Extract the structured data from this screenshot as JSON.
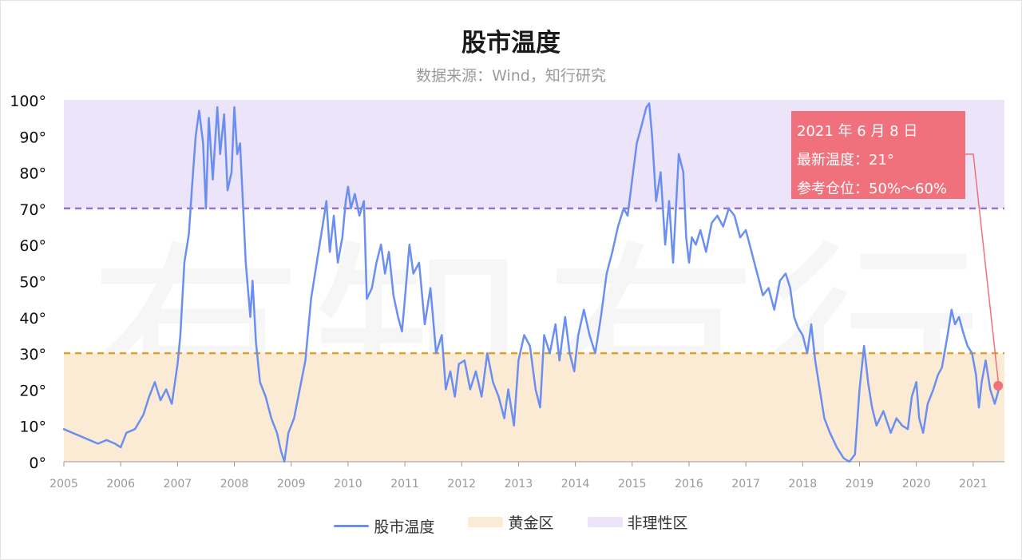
{
  "chart_data": {
    "type": "line",
    "title": "股市温度",
    "subtitle": "数据来源：Wind，知行研究",
    "x_ticks": [
      "2005",
      "2006",
      "2007",
      "2008",
      "2009",
      "2010",
      "2011",
      "2012",
      "2013",
      "2014",
      "2015",
      "2016",
      "2017",
      "2018",
      "2019",
      "2020",
      "2021"
    ],
    "y_ticks": [
      "0°",
      "10°",
      "20°",
      "30°",
      "40°",
      "50°",
      "60°",
      "70°",
      "80°",
      "90°",
      "100°"
    ],
    "ylim": [
      0,
      100
    ],
    "xlim": [
      2005.0,
      2021.55
    ],
    "bands": [
      {
        "name": "黄金区",
        "from": 0,
        "to": 30,
        "color": "#fbebd4"
      },
      {
        "name": "非理性区",
        "from": 70,
        "to": 100,
        "color": "#ece4f8"
      }
    ],
    "thresholds": [
      {
        "value": 30,
        "color": "#e0a030"
      },
      {
        "value": 70,
        "color": "#9a6fd6"
      }
    ],
    "series": [
      {
        "name": "股市温度",
        "color": "#6b8ff0",
        "points": [
          [
            2005.0,
            9
          ],
          [
            2005.15,
            8
          ],
          [
            2005.3,
            7
          ],
          [
            2005.45,
            6
          ],
          [
            2005.6,
            5
          ],
          [
            2005.75,
            6
          ],
          [
            2005.9,
            5
          ],
          [
            2006.0,
            4
          ],
          [
            2006.1,
            8
          ],
          [
            2006.25,
            9
          ],
          [
            2006.4,
            13
          ],
          [
            2006.5,
            18
          ],
          [
            2006.6,
            22
          ],
          [
            2006.7,
            17
          ],
          [
            2006.8,
            20
          ],
          [
            2006.9,
            16
          ],
          [
            2007.0,
            27
          ],
          [
            2007.05,
            35
          ],
          [
            2007.12,
            55
          ],
          [
            2007.2,
            63
          ],
          [
            2007.25,
            75
          ],
          [
            2007.32,
            90
          ],
          [
            2007.38,
            97
          ],
          [
            2007.45,
            88
          ],
          [
            2007.5,
            70
          ],
          [
            2007.55,
            95
          ],
          [
            2007.62,
            78
          ],
          [
            2007.7,
            98
          ],
          [
            2007.75,
            85
          ],
          [
            2007.82,
            96
          ],
          [
            2007.88,
            75
          ],
          [
            2007.95,
            80
          ],
          [
            2008.0,
            98
          ],
          [
            2008.05,
            85
          ],
          [
            2008.1,
            88
          ],
          [
            2008.2,
            55
          ],
          [
            2008.28,
            40
          ],
          [
            2008.32,
            50
          ],
          [
            2008.38,
            33
          ],
          [
            2008.45,
            22
          ],
          [
            2008.55,
            18
          ],
          [
            2008.65,
            12
          ],
          [
            2008.75,
            8
          ],
          [
            2008.82,
            3
          ],
          [
            2008.88,
            0
          ],
          [
            2008.95,
            8
          ],
          [
            2009.05,
            12
          ],
          [
            2009.15,
            20
          ],
          [
            2009.25,
            28
          ],
          [
            2009.35,
            45
          ],
          [
            2009.45,
            55
          ],
          [
            2009.55,
            65
          ],
          [
            2009.62,
            72
          ],
          [
            2009.68,
            58
          ],
          [
            2009.75,
            68
          ],
          [
            2009.82,
            55
          ],
          [
            2009.9,
            62
          ],
          [
            2009.96,
            72
          ],
          [
            2010.0,
            76
          ],
          [
            2010.05,
            70
          ],
          [
            2010.12,
            74
          ],
          [
            2010.2,
            68
          ],
          [
            2010.28,
            72
          ],
          [
            2010.33,
            45
          ],
          [
            2010.42,
            48
          ],
          [
            2010.5,
            55
          ],
          [
            2010.58,
            60
          ],
          [
            2010.65,
            52
          ],
          [
            2010.72,
            58
          ],
          [
            2010.8,
            46
          ],
          [
            2010.88,
            40
          ],
          [
            2010.95,
            36
          ],
          [
            2011.0,
            45
          ],
          [
            2011.08,
            60
          ],
          [
            2011.15,
            52
          ],
          [
            2011.25,
            55
          ],
          [
            2011.35,
            38
          ],
          [
            2011.45,
            48
          ],
          [
            2011.55,
            30
          ],
          [
            2011.65,
            35
          ],
          [
            2011.72,
            20
          ],
          [
            2011.8,
            25
          ],
          [
            2011.88,
            18
          ],
          [
            2011.95,
            27
          ],
          [
            2012.05,
            28
          ],
          [
            2012.15,
            20
          ],
          [
            2012.25,
            25
          ],
          [
            2012.35,
            18
          ],
          [
            2012.45,
            30
          ],
          [
            2012.55,
            22
          ],
          [
            2012.65,
            18
          ],
          [
            2012.75,
            12
          ],
          [
            2012.82,
            20
          ],
          [
            2012.92,
            10
          ],
          [
            2013.0,
            28
          ],
          [
            2013.1,
            35
          ],
          [
            2013.2,
            32
          ],
          [
            2013.3,
            20
          ],
          [
            2013.38,
            15
          ],
          [
            2013.45,
            35
          ],
          [
            2013.55,
            30
          ],
          [
            2013.65,
            38
          ],
          [
            2013.72,
            28
          ],
          [
            2013.82,
            40
          ],
          [
            2013.9,
            30
          ],
          [
            2013.98,
            25
          ],
          [
            2014.05,
            35
          ],
          [
            2014.15,
            42
          ],
          [
            2014.25,
            35
          ],
          [
            2014.35,
            30
          ],
          [
            2014.45,
            40
          ],
          [
            2014.55,
            52
          ],
          [
            2014.65,
            58
          ],
          [
            2014.75,
            65
          ],
          [
            2014.85,
            70
          ],
          [
            2014.92,
            68
          ],
          [
            2015.0,
            78
          ],
          [
            2015.08,
            88
          ],
          [
            2015.15,
            92
          ],
          [
            2015.2,
            95
          ],
          [
            2015.25,
            98
          ],
          [
            2015.3,
            99
          ],
          [
            2015.35,
            90
          ],
          [
            2015.42,
            72
          ],
          [
            2015.5,
            80
          ],
          [
            2015.58,
            60
          ],
          [
            2015.65,
            72
          ],
          [
            2015.72,
            55
          ],
          [
            2015.82,
            85
          ],
          [
            2015.9,
            80
          ],
          [
            2015.95,
            62
          ],
          [
            2016.0,
            55
          ],
          [
            2016.05,
            62
          ],
          [
            2016.12,
            60
          ],
          [
            2016.2,
            64
          ],
          [
            2016.3,
            58
          ],
          [
            2016.4,
            66
          ],
          [
            2016.5,
            68
          ],
          [
            2016.6,
            65
          ],
          [
            2016.7,
            70
          ],
          [
            2016.8,
            68
          ],
          [
            2016.9,
            62
          ],
          [
            2017.0,
            64
          ],
          [
            2017.1,
            58
          ],
          [
            2017.2,
            52
          ],
          [
            2017.3,
            46
          ],
          [
            2017.4,
            48
          ],
          [
            2017.5,
            42
          ],
          [
            2017.6,
            50
          ],
          [
            2017.7,
            52
          ],
          [
            2017.78,
            48
          ],
          [
            2017.85,
            40
          ],
          [
            2017.92,
            37
          ],
          [
            2018.0,
            35
          ],
          [
            2018.08,
            30
          ],
          [
            2018.15,
            38
          ],
          [
            2018.22,
            28
          ],
          [
            2018.3,
            20
          ],
          [
            2018.38,
            12
          ],
          [
            2018.48,
            8
          ],
          [
            2018.6,
            4
          ],
          [
            2018.72,
            1
          ],
          [
            2018.82,
            0
          ],
          [
            2018.92,
            2
          ],
          [
            2019.0,
            20
          ],
          [
            2019.08,
            32
          ],
          [
            2019.15,
            22
          ],
          [
            2019.22,
            15
          ],
          [
            2019.3,
            10
          ],
          [
            2019.42,
            14
          ],
          [
            2019.55,
            8
          ],
          [
            2019.65,
            12
          ],
          [
            2019.75,
            10
          ],
          [
            2019.85,
            9
          ],
          [
            2019.92,
            18
          ],
          [
            2020.0,
            22
          ],
          [
            2020.05,
            12
          ],
          [
            2020.12,
            8
          ],
          [
            2020.2,
            16
          ],
          [
            2020.3,
            20
          ],
          [
            2020.38,
            24
          ],
          [
            2020.45,
            26
          ],
          [
            2020.55,
            35
          ],
          [
            2020.62,
            42
          ],
          [
            2020.68,
            38
          ],
          [
            2020.75,
            40
          ],
          [
            2020.82,
            36
          ],
          [
            2020.9,
            32
          ],
          [
            2020.98,
            30
          ],
          [
            2021.05,
            24
          ],
          [
            2021.1,
            15
          ],
          [
            2021.15,
            22
          ],
          [
            2021.22,
            28
          ],
          [
            2021.3,
            20
          ],
          [
            2021.38,
            16
          ],
          [
            2021.45,
            20
          ],
          [
            2021.5,
            21
          ]
        ]
      }
    ],
    "annotation": {
      "x": 2021.44,
      "y": 21,
      "lines": [
        "2021 年 6 月 8 日",
        "最新温度：21°",
        "参考仓位：50%～60%"
      ],
      "color": "#f0707b"
    },
    "legend": [
      {
        "name": "股市温度",
        "kind": "line",
        "color": "#6b8ff0"
      },
      {
        "name": "黄金区",
        "kind": "box",
        "color": "#fbebd4"
      },
      {
        "name": "非理性区",
        "kind": "box",
        "color": "#ece4f8"
      }
    ],
    "watermark": [
      "有",
      "知",
      "有",
      "行"
    ]
  }
}
